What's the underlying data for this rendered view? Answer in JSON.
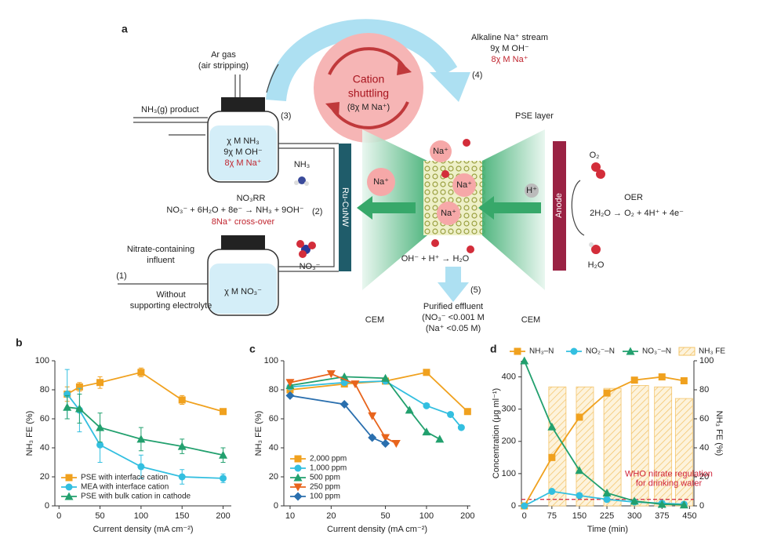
{
  "diagram": {
    "panel_label": "a",
    "labels": [
      "Ar gas",
      "(air stripping)",
      "NH₃(g) product",
      "(3)",
      "χ M NH₃",
      "9χ M OH⁻",
      "8χ M Na⁺",
      "Cation",
      "shuttling",
      "(8χ M Na⁺)",
      "Alkaline Na⁺ stream",
      "9χ M OH⁻",
      "8χ M Na⁺",
      "(4)",
      "PSE layer",
      "NH₃",
      "NO₃RR",
      "NO₃⁻ + 6H₂O + 8e⁻ → NH₃ + 9OH⁻",
      "8Na⁺ cross-over",
      "(2)",
      "Ru-CuNW",
      "Na⁺",
      "Na⁺",
      "Na⁺",
      "Na⁺",
      "H⁺",
      "Anode",
      "O₂",
      "OER",
      "2H₂O → O₂ + 4H⁺ + 4e⁻",
      "H₂O",
      "Nitrate-containing",
      "influent",
      "(1)",
      "Without",
      "supporting electrolyte",
      "χ M NO₃⁻",
      "NO₃⁻",
      "OH⁻ + H⁺ → H₂O",
      "(5)",
      "Purified effluent",
      "(NO₃⁻ <0.001 M",
      "(Na⁺ <0.05 M)",
      "CEM",
      "CEM"
    ]
  },
  "chart_data": [
    {
      "type": "line",
      "label": "b",
      "xlabel": "Current density (mA cm⁻²)",
      "ylabel": "NH₃ FE (%)",
      "xlim": [
        -5,
        210
      ],
      "xticks": [
        0,
        50,
        100,
        150,
        200
      ],
      "ylim": [
        0,
        100
      ],
      "yticks": [
        0,
        20,
        40,
        60,
        80,
        100
      ],
      "legend": "lower left",
      "series": [
        {
          "name": "PSE with interface cation",
          "color": "#f0a11e",
          "marker": "square",
          "x": [
            10,
            25,
            50,
            100,
            150,
            200
          ],
          "values": [
            77,
            82,
            85,
            92,
            73,
            65
          ],
          "errors": [
            5,
            3,
            4,
            3,
            3,
            2
          ]
        },
        {
          "name": "MEA with interface cation",
          "color": "#33bfe0",
          "marker": "circle",
          "x": [
            10,
            25,
            50,
            100,
            150,
            200
          ],
          "values": [
            77,
            66,
            42,
            27,
            20,
            19
          ],
          "errors": [
            17,
            15,
            12,
            8,
            5,
            3
          ]
        },
        {
          "name": "PSE with bulk cation in cathode",
          "color": "#22a06e",
          "marker": "triangle",
          "x": [
            10,
            25,
            50,
            100,
            150,
            200
          ],
          "values": [
            68,
            67,
            54,
            46,
            41,
            35
          ],
          "errors": [
            8,
            10,
            10,
            8,
            5,
            5
          ]
        }
      ]
    },
    {
      "type": "line",
      "label": "c",
      "xlabel": "Current density (mA cm⁻²)",
      "ylabel": "NH₃ FE (%)",
      "xscale": "log",
      "xlim": [
        9,
        210
      ],
      "xticks": [
        10,
        20,
        50,
        100,
        200
      ],
      "ylim": [
        0,
        100
      ],
      "yticks": [
        0,
        20,
        40,
        60,
        80,
        100
      ],
      "legend": "lower left",
      "series": [
        {
          "name": "2,000 ppm",
          "color": "#f0a11e",
          "marker": "square",
          "x": [
            10,
            25,
            50,
            100,
            200
          ],
          "values": [
            80,
            84,
            86,
            92,
            65
          ]
        },
        {
          "name": "1,000 ppm",
          "color": "#33bfe0",
          "marker": "circle",
          "x": [
            10,
            25,
            50,
            100,
            150,
            180
          ],
          "values": [
            82,
            85,
            86,
            69,
            63,
            54
          ]
        },
        {
          "name": "500 ppm",
          "color": "#22a06e",
          "marker": "triangle",
          "x": [
            10,
            25,
            50,
            75,
            100,
            125
          ],
          "values": [
            83,
            89,
            88,
            66,
            51,
            46
          ]
        },
        {
          "name": "250 ppm",
          "color": "#e8641c",
          "marker": "triangle-down",
          "x": [
            10,
            20,
            30,
            40,
            50,
            60
          ],
          "values": [
            85,
            91,
            84,
            62,
            47,
            43
          ]
        },
        {
          "name": "100 ppm",
          "color": "#2a6fae",
          "marker": "diamond",
          "x": [
            10,
            25,
            40,
            50
          ],
          "values": [
            76,
            70,
            47,
            43
          ]
        }
      ]
    },
    {
      "type": "line",
      "label": "d",
      "xlabel": "Time (min)",
      "ylabel": "Concentration (μg ml⁻¹)",
      "y2label": "NH₃ FE (%)",
      "xlim": [
        -8,
        462
      ],
      "xticks": [
        0,
        75,
        150,
        225,
        300,
        375,
        450
      ],
      "ylim": [
        0,
        450
      ],
      "yticks": [
        0,
        100,
        200,
        300,
        400
      ],
      "y2lim": [
        0,
        100
      ],
      "y2ticks": [
        0,
        20,
        40,
        60,
        80,
        100
      ],
      "legend": "top",
      "series": [
        {
          "name": "NH₃–N",
          "color": "#f0a11e",
          "marker": "square",
          "x": [
            0,
            75,
            150,
            225,
            300,
            375,
            435
          ],
          "values": [
            0,
            150,
            275,
            350,
            390,
            400,
            388
          ]
        },
        {
          "name": "NO₂⁻–N",
          "color": "#33bfe0",
          "marker": "circle",
          "x": [
            0,
            75,
            150,
            225,
            300,
            375,
            435
          ],
          "values": [
            0,
            45,
            32,
            20,
            12,
            8,
            5
          ]
        },
        {
          "name": "NO₃⁻–N",
          "color": "#22a06e",
          "marker": "triangle",
          "x": [
            0,
            75,
            150,
            225,
            300,
            375,
            435
          ],
          "values": [
            450,
            245,
            110,
            40,
            15,
            5,
            3
          ]
        },
        {
          "name": "NH₃ FE",
          "color": "#f3c46a",
          "kind": "bar",
          "axis": "y2",
          "x": [
            90,
            165,
            240,
            315,
            378,
            435
          ],
          "values": [
            82,
            82,
            81,
            83,
            82,
            74
          ]
        }
      ],
      "reference_line": {
        "value": 20,
        "color": "#d0243a",
        "label": [
          "WHO nitrate regulation",
          "for drinking water"
        ]
      }
    }
  ]
}
